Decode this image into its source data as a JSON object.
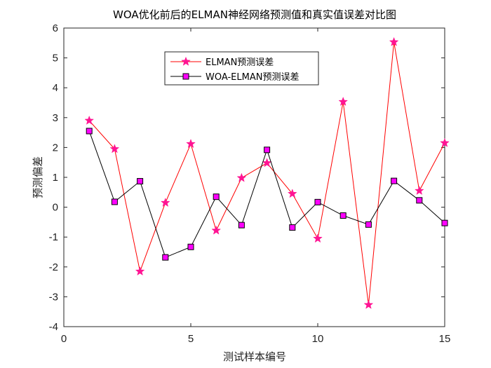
{
  "chart_data": {
    "type": "line",
    "title": "WOA优化前后的ELMAN神经网络预测值和真实值误差对比图",
    "xlabel": "测试样本编号",
    "ylabel": "预测偏差",
    "xlim": [
      0,
      15
    ],
    "ylim": [
      -4,
      6
    ],
    "x_ticks": [
      "0",
      "5",
      "10",
      "15"
    ],
    "y_ticks": [
      "-4",
      "-3",
      "-2",
      "-1",
      "0",
      "1",
      "2",
      "3",
      "4",
      "5",
      "6"
    ],
    "x": [
      1,
      2,
      3,
      4,
      5,
      6,
      7,
      8,
      9,
      10,
      11,
      12,
      13,
      14,
      15
    ],
    "series": [
      {
        "name": "ELMAN预测误差",
        "color": "#ff0000",
        "marker_color": "#ff1493",
        "marker": "star",
        "values": [
          2.9,
          1.95,
          -2.15,
          0.15,
          2.12,
          -0.78,
          0.98,
          1.48,
          0.45,
          -1.05,
          3.53,
          -3.27,
          5.53,
          0.55,
          2.15
        ]
      },
      {
        "name": "WOA-ELMAN预测误差",
        "color": "#000000",
        "marker_color": "#ff00ff",
        "marker": "square",
        "values": [
          2.55,
          0.18,
          0.87,
          -1.68,
          -1.33,
          0.35,
          -0.6,
          1.92,
          -0.68,
          0.17,
          -0.28,
          -0.58,
          0.88,
          0.23,
          -0.53
        ]
      }
    ],
    "legend_position": "top-center",
    "grid": false
  }
}
